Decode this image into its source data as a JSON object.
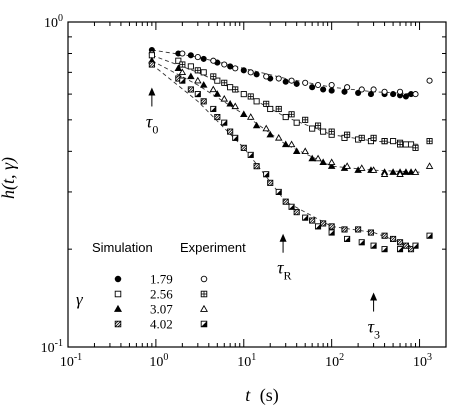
{
  "chart_data": {
    "type": "scatter",
    "x_scale": "log",
    "y_scale": "log",
    "xlim": [
      0.1,
      2000
    ],
    "ylim": [
      0.1,
      1
    ],
    "grid": false,
    "x_ticks": [
      {
        "value": 0.1,
        "base": "10",
        "exp": "-1"
      },
      {
        "value": 1,
        "base": "10",
        "exp": "0"
      },
      {
        "value": 10,
        "base": "10",
        "exp": "1"
      },
      {
        "value": 100,
        "base": "10",
        "exp": "2"
      },
      {
        "value": 1000,
        "base": "10",
        "exp": "3"
      }
    ],
    "y_ticks": [
      {
        "value": 0.1,
        "base": "10",
        "exp": "-1"
      },
      {
        "value": 1,
        "base": "10",
        "exp": "0"
      }
    ],
    "xlabel": {
      "main": "t",
      "unit": "(s)"
    },
    "ylabel": {
      "main": "h(t, γ)"
    },
    "legend": {
      "position": "bottom-left",
      "header_sim": "Simulation",
      "header_exp": "Experiment",
      "gamma_symbol": "γ"
    },
    "annotations": [
      {
        "id": "tau0",
        "main": "τ",
        "sub": "0",
        "x": 0.9,
        "y_arrow": 0.62
      },
      {
        "id": "tauR",
        "main": "τ",
        "sub": "R",
        "x": 28,
        "y_arrow": 0.22
      },
      {
        "id": "tau3",
        "main": "τ",
        "sub": "3",
        "x": 300,
        "y_arrow": 0.145
      }
    ],
    "series": [
      {
        "gamma": "1.79",
        "sim_marker": "filled-circle",
        "exp_marker": "open-circle",
        "simulation": {
          "x": [
            0.9,
            1.8,
            2.5,
            3.5,
            5,
            7,
            10,
            14,
            20,
            30,
            40,
            60,
            80,
            100,
            140,
            200,
            280,
            400,
            500,
            600,
            700,
            800
          ],
          "y": [
            0.82,
            0.8,
            0.79,
            0.77,
            0.75,
            0.73,
            0.71,
            0.69,
            0.67,
            0.655,
            0.645,
            0.63,
            0.62,
            0.615,
            0.61,
            0.605,
            0.6,
            0.6,
            0.6,
            0.595,
            0.59,
            0.6
          ]
        },
        "experiment": {
          "x": [
            0.9,
            2,
            3,
            4.5,
            6,
            8,
            12,
            18,
            25,
            35,
            50,
            70,
            100,
            150,
            220,
            300,
            400,
            600,
            900,
            1300
          ],
          "y": [
            0.8,
            0.8,
            0.78,
            0.76,
            0.74,
            0.72,
            0.7,
            0.68,
            0.67,
            0.66,
            0.65,
            0.64,
            0.64,
            0.63,
            0.62,
            0.62,
            0.61,
            0.61,
            0.6,
            0.66
          ]
        },
        "fit": {
          "x": [
            0.9,
            3,
            10,
            30,
            100,
            300,
            1000
          ],
          "y": [
            0.82,
            0.78,
            0.72,
            0.67,
            0.63,
            0.61,
            0.6
          ]
        }
      },
      {
        "gamma": "2.56",
        "sim_marker": "open-square",
        "exp_marker": "crossed-square",
        "simulation": {
          "x": [
            0.9,
            1.8,
            2.5,
            3.5,
            5,
            7,
            10,
            14,
            20,
            30,
            40,
            60,
            80,
            100,
            140,
            200,
            280,
            400,
            500,
            600,
            700,
            800
          ],
          "y": [
            0.79,
            0.76,
            0.73,
            0.7,
            0.66,
            0.63,
            0.6,
            0.57,
            0.54,
            0.51,
            0.49,
            0.47,
            0.46,
            0.45,
            0.44,
            0.435,
            0.43,
            0.43,
            0.43,
            0.425,
            0.42,
            0.42
          ]
        },
        "experiment": {
          "x": [
            2,
            3,
            4.5,
            6,
            8,
            12,
            18,
            25,
            35,
            50,
            70,
            100,
            150,
            220,
            300,
            400,
            600,
            900,
            1300
          ],
          "y": [
            0.74,
            0.71,
            0.68,
            0.65,
            0.62,
            0.59,
            0.56,
            0.54,
            0.52,
            0.5,
            0.48,
            0.46,
            0.45,
            0.44,
            0.44,
            0.43,
            0.42,
            0.41,
            0.43
          ]
        },
        "fit": {
          "x": [
            0.9,
            3,
            10,
            30,
            100,
            300,
            1000
          ],
          "y": [
            0.79,
            0.7,
            0.6,
            0.51,
            0.45,
            0.43,
            0.42
          ]
        }
      },
      {
        "gamma": "3.07",
        "sim_marker": "filled-triangle",
        "exp_marker": "open-triangle",
        "simulation": {
          "x": [
            0.9,
            1.8,
            2.5,
            3.5,
            5,
            7,
            10,
            14,
            20,
            30,
            40,
            60,
            80,
            100,
            140,
            200,
            280,
            400,
            500,
            600,
            700,
            800
          ],
          "y": [
            0.76,
            0.72,
            0.68,
            0.64,
            0.6,
            0.56,
            0.52,
            0.48,
            0.45,
            0.42,
            0.4,
            0.38,
            0.37,
            0.36,
            0.355,
            0.35,
            0.35,
            0.345,
            0.345,
            0.345,
            0.345,
            0.345
          ]
        },
        "experiment": {
          "x": [
            2,
            3,
            4.5,
            6,
            8,
            12,
            18,
            25,
            35,
            50,
            70,
            100,
            150,
            220,
            300,
            400,
            600,
            900,
            1300
          ],
          "y": [
            0.7,
            0.66,
            0.62,
            0.58,
            0.55,
            0.51,
            0.47,
            0.44,
            0.42,
            0.4,
            0.38,
            0.37,
            0.36,
            0.355,
            0.35,
            0.34,
            0.34,
            0.345,
            0.36
          ]
        },
        "fit": {
          "x": [
            0.9,
            3,
            10,
            30,
            100,
            300,
            1000
          ],
          "y": [
            0.76,
            0.64,
            0.52,
            0.42,
            0.36,
            0.35,
            0.345
          ]
        }
      },
      {
        "gamma": "4.02",
        "sim_marker": "hatched-square",
        "exp_marker": "half-filled-square",
        "simulation": {
          "x": [
            0.9,
            1.8,
            2.5,
            3.5,
            5,
            7,
            10,
            14,
            20,
            30,
            40,
            60,
            80,
            100,
            140,
            200,
            280,
            400,
            500,
            600,
            700,
            800
          ],
          "y": [
            0.74,
            0.67,
            0.62,
            0.57,
            0.51,
            0.46,
            0.41,
            0.36,
            0.32,
            0.28,
            0.26,
            0.245,
            0.24,
            0.235,
            0.23,
            0.23,
            0.225,
            0.22,
            0.215,
            0.21,
            0.205,
            0.2
          ]
        },
        "experiment": {
          "x": [
            2,
            3,
            4.5,
            6,
            8,
            12,
            18,
            25,
            35,
            50,
            70,
            100,
            150,
            220,
            300,
            400,
            600,
            900,
            1300
          ],
          "y": [
            0.66,
            0.6,
            0.54,
            0.49,
            0.44,
            0.39,
            0.34,
            0.3,
            0.27,
            0.25,
            0.235,
            0.225,
            0.215,
            0.21,
            0.205,
            0.2,
            0.2,
            0.205,
            0.22
          ]
        },
        "fit": {
          "x": [
            0.9,
            3,
            10,
            30,
            100,
            300,
            1000
          ],
          "y": [
            0.74,
            0.57,
            0.41,
            0.28,
            0.235,
            0.225,
            0.2
          ]
        }
      }
    ]
  }
}
